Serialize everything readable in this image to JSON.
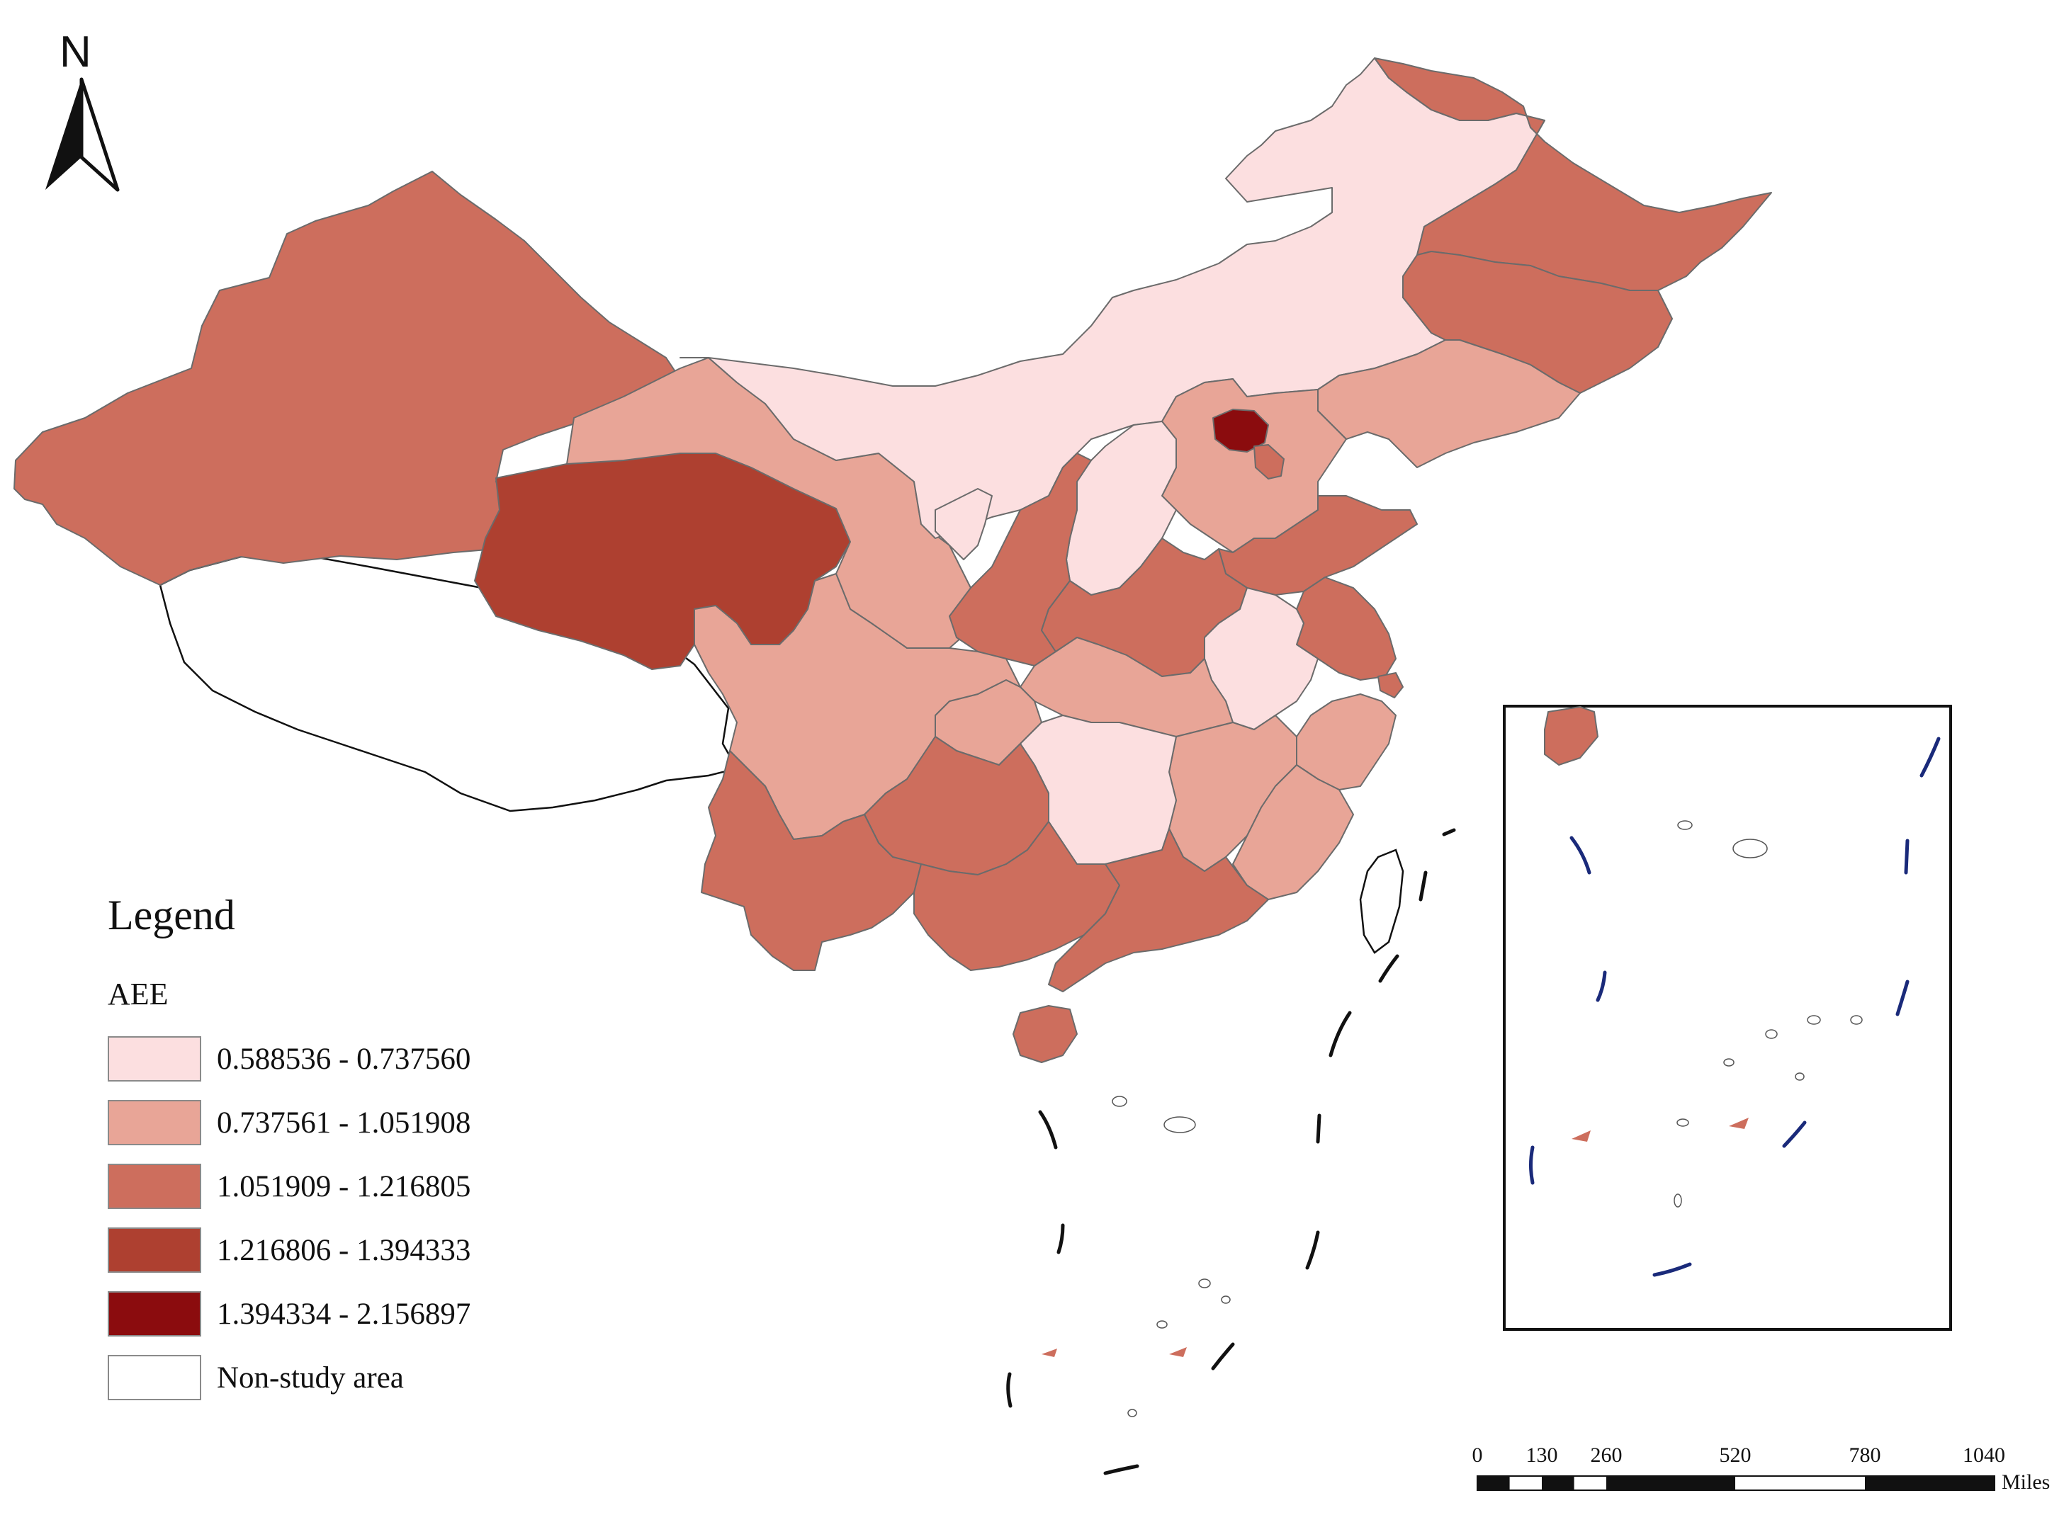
{
  "north_arrow": {
    "letter": "N"
  },
  "legend": {
    "title": "Legend",
    "field": "AEE",
    "classes": [
      {
        "label": "0.588536 - 0.737560",
        "color": "#fcdfe0"
      },
      {
        "label": "0.737561 - 1.051908",
        "color": "#e8a597"
      },
      {
        "label": "1.051909 - 1.216805",
        "color": "#cd6e5d"
      },
      {
        "label": "1.216806 - 1.394333",
        "color": "#ae4030"
      },
      {
        "label": "1.394334 - 2.156897",
        "color": "#8b0c0e"
      }
    ],
    "non_study": {
      "label": "Non-study area",
      "color": "#ffffff"
    }
  },
  "scale_bar": {
    "ticks": [
      "0",
      "130",
      "260",
      "520",
      "780",
      "1040"
    ],
    "unit": "Miles"
  },
  "regions": [
    {
      "name": "Xinjiang",
      "class": 2
    },
    {
      "name": "Tibet",
      "class": -1
    },
    {
      "name": "Qinghai",
      "class": 3
    },
    {
      "name": "Gansu",
      "class": 1
    },
    {
      "name": "Inner Mongolia",
      "class": 0
    },
    {
      "name": "Heilongjiang",
      "class": 2
    },
    {
      "name": "Jilin",
      "class": 2
    },
    {
      "name": "Liaoning",
      "class": 1
    },
    {
      "name": "Beijing",
      "class": 4
    },
    {
      "name": "Tianjin",
      "class": 2
    },
    {
      "name": "Hebei",
      "class": 1
    },
    {
      "name": "Shanxi",
      "class": 0
    },
    {
      "name": "Ningxia",
      "class": 0
    },
    {
      "name": "Shaanxi",
      "class": 2
    },
    {
      "name": "Shandong",
      "class": 2
    },
    {
      "name": "Henan",
      "class": 2
    },
    {
      "name": "Jiangsu",
      "class": 2
    },
    {
      "name": "Anhui",
      "class": 0
    },
    {
      "name": "Shanghai",
      "class": 2
    },
    {
      "name": "Hubei",
      "class": 1
    },
    {
      "name": "Chongqing",
      "class": 1
    },
    {
      "name": "Sichuan",
      "class": 1
    },
    {
      "name": "Zhejiang",
      "class": 1
    },
    {
      "name": "Jiangxi",
      "class": 1
    },
    {
      "name": "Hunan",
      "class": 0
    },
    {
      "name": "Fujian",
      "class": 1
    },
    {
      "name": "Guizhou",
      "class": 2
    },
    {
      "name": "Yunnan",
      "class": 2
    },
    {
      "name": "Guangxi",
      "class": 2
    },
    {
      "name": "Guangdong",
      "class": 2
    },
    {
      "name": "Hainan",
      "class": 2
    },
    {
      "name": "Taiwan",
      "class": -1
    }
  ]
}
